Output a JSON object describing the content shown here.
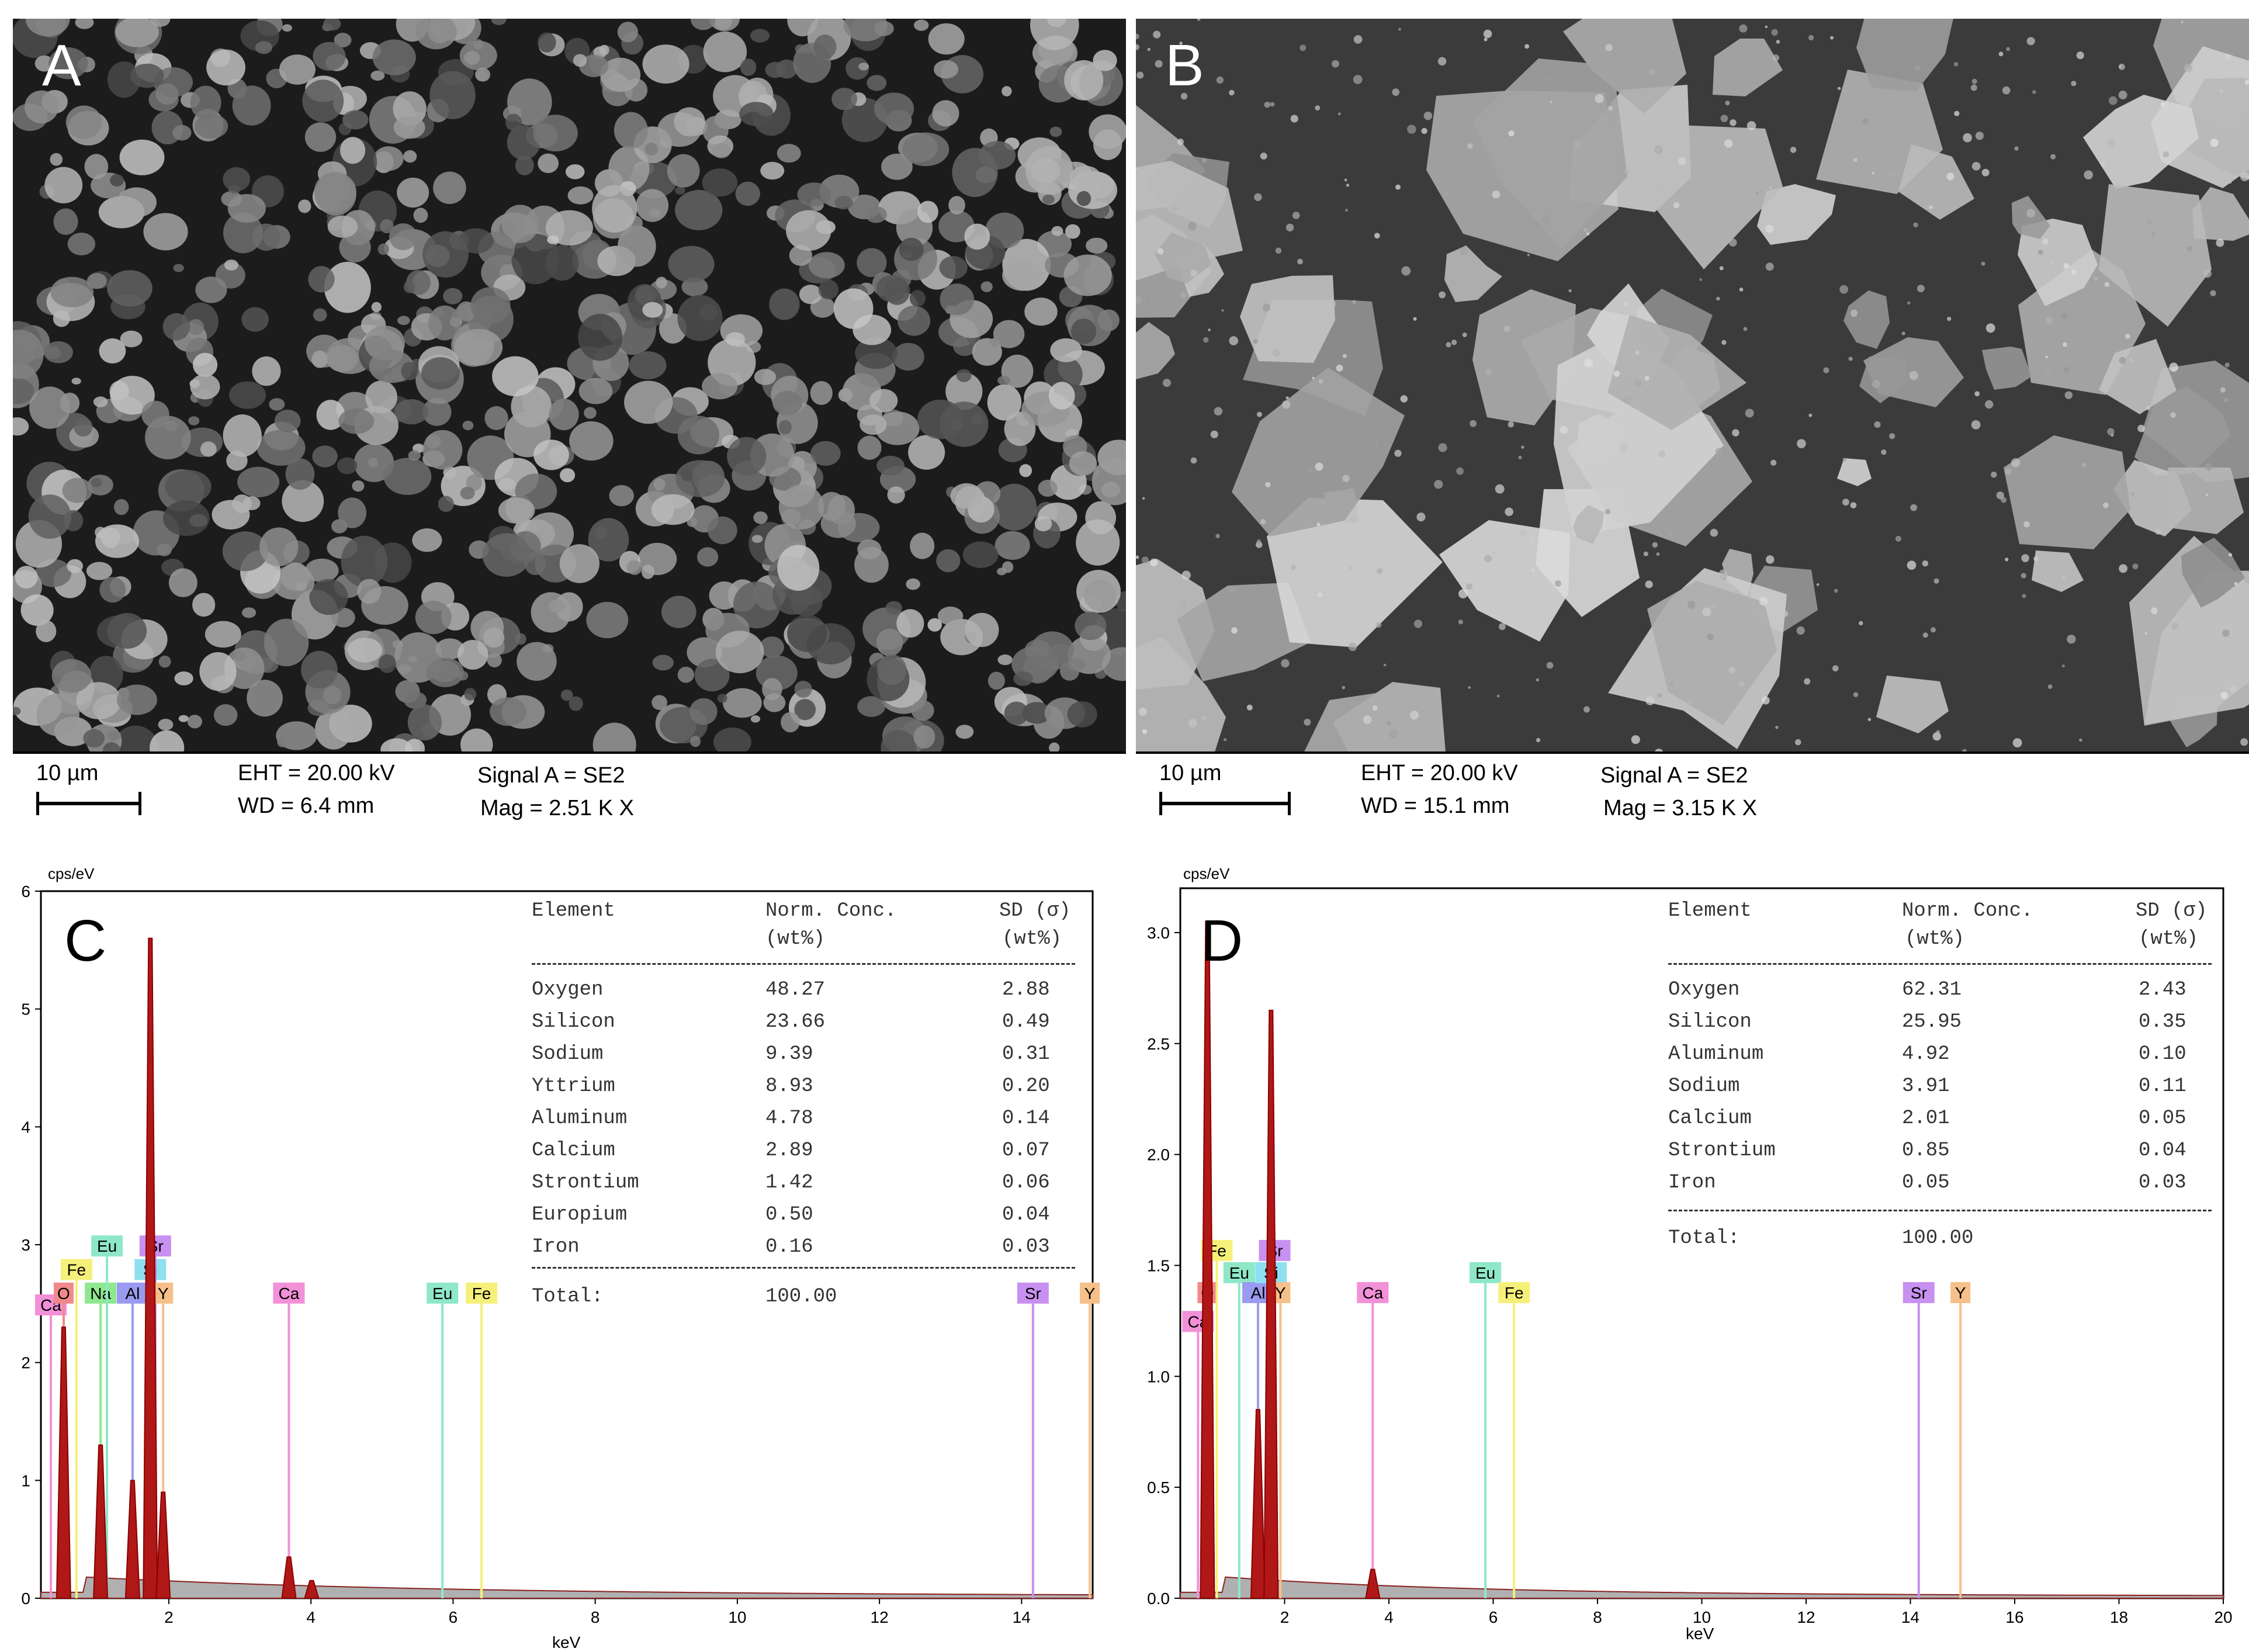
{
  "panels": {
    "a": {
      "letter": "A",
      "scale": "10 µm",
      "eht": "EHT = 20.00 kV",
      "wd": "WD =  6.4 mm",
      "signal": "Signal A = SE2",
      "mag": "Mag =    2.51 K X"
    },
    "b": {
      "letter": "B",
      "scale": "10 µm",
      "eht": "EHT = 20.00 kV",
      "wd": "WD = 15.1 mm",
      "signal": "Signal A = SE2",
      "mag": "Mag =    3.15 K X"
    }
  },
  "chart_data": [
    {
      "panel": "C",
      "type": "line",
      "ylabel_top": "cps/eV",
      "xlabel": "keV",
      "xlim": [
        0.2,
        15
      ],
      "ylim": [
        0,
        6
      ],
      "xticks": [
        "2",
        "4",
        "6",
        "8",
        "10",
        "12",
        "14"
      ],
      "yticks": [
        "0",
        "1",
        "2",
        "3",
        "4",
        "5",
        "6"
      ],
      "peaks": [
        {
          "element": "O",
          "kev": 0.52,
          "height": 2.3
        },
        {
          "element": "Na",
          "kev": 1.04,
          "height": 1.3
        },
        {
          "element": "Al",
          "kev": 1.49,
          "height": 1.0
        },
        {
          "element": "Si",
          "kev": 1.74,
          "height": 5.6
        },
        {
          "element": "Y",
          "kev": 1.92,
          "height": 0.9
        },
        {
          "element": "Ca",
          "kev": 3.69,
          "height": 0.35
        },
        {
          "element": "Ca",
          "kev": 4.01,
          "height": 0.15
        }
      ],
      "markers": [
        {
          "label": "Ca",
          "kev": 0.34,
          "height": 2.4,
          "color": "#f290d8"
        },
        {
          "label": "O",
          "kev": 0.52,
          "height": 2.5,
          "color": "#f08a8a"
        },
        {
          "label": "Fe",
          "kev": 0.7,
          "height": 2.7,
          "color": "#f5f07a"
        },
        {
          "label": "Na",
          "kev": 1.04,
          "height": 2.5,
          "color": "#8fe88f"
        },
        {
          "label": "Eu",
          "kev": 1.13,
          "height": 2.9,
          "color": "#8ee8c8"
        },
        {
          "label": "Al",
          "kev": 1.49,
          "height": 2.5,
          "color": "#9a9af0"
        },
        {
          "label": "Si",
          "kev": 1.74,
          "height": 2.7,
          "color": "#8ee0f0"
        },
        {
          "label": "Sr",
          "kev": 1.81,
          "height": 2.9,
          "color": "#c890f0"
        },
        {
          "label": "Y",
          "kev": 1.92,
          "height": 2.5,
          "color": "#f5c08a"
        },
        {
          "label": "Ca",
          "kev": 3.69,
          "height": 2.5,
          "color": "#f290d8"
        },
        {
          "label": "Eu",
          "kev": 5.85,
          "height": 2.5,
          "color": "#8ee8c8"
        },
        {
          "label": "Fe",
          "kev": 6.4,
          "height": 2.5,
          "color": "#f5f07a"
        },
        {
          "label": "Sr",
          "kev": 14.16,
          "height": 2.5,
          "color": "#c890f0"
        },
        {
          "label": "Y",
          "kev": 14.96,
          "height": 2.5,
          "color": "#f5c08a"
        }
      ],
      "table": {
        "headers": [
          "Element",
          "Norm. Conc.",
          "SD (σ)"
        ],
        "units": [
          "",
          "(wt%)",
          "(wt%)"
        ],
        "rows": [
          [
            "Oxygen",
            "48.27",
            "2.88"
          ],
          [
            "Silicon",
            "23.66",
            "0.49"
          ],
          [
            "Sodium",
            "9.39",
            "0.31"
          ],
          [
            "Yttrium",
            "8.93",
            "0.20"
          ],
          [
            "Aluminum",
            "4.78",
            "0.14"
          ],
          [
            "Calcium",
            "2.89",
            "0.07"
          ],
          [
            "Strontium",
            "1.42",
            "0.06"
          ],
          [
            "Europium",
            "0.50",
            "0.04"
          ],
          [
            "Iron",
            "0.16",
            "0.03"
          ]
        ],
        "total_label": "Total:",
        "total_value": "100.00"
      }
    },
    {
      "panel": "D",
      "type": "line",
      "ylabel_top": "cps/eV",
      "xlabel": "keV",
      "xlim": [
        0,
        20
      ],
      "ylim": [
        0,
        3.2
      ],
      "xticks": [
        "2",
        "4",
        "6",
        "8",
        "10",
        "12",
        "14",
        "16",
        "18",
        "20"
      ],
      "yticks": [
        "0.0",
        "0.5",
        "1.0",
        "1.5",
        "2.0",
        "2.5",
        "3.0"
      ],
      "peaks": [
        {
          "element": "O",
          "kev": 0.52,
          "height": 3.05
        },
        {
          "element": "Al",
          "kev": 1.49,
          "height": 0.85
        },
        {
          "element": "Si",
          "kev": 1.74,
          "height": 2.65
        },
        {
          "element": "Ca",
          "kev": 3.69,
          "height": 0.13
        }
      ],
      "markers": [
        {
          "label": "Ca",
          "kev": 0.34,
          "height": 1.2,
          "color": "#f290d8"
        },
        {
          "label": "O",
          "kev": 0.52,
          "height": 1.33,
          "color": "#f08a8a"
        },
        {
          "label": "Fe",
          "kev": 0.7,
          "height": 1.52,
          "color": "#f5f07a"
        },
        {
          "label": "Eu",
          "kev": 1.13,
          "height": 1.42,
          "color": "#8ee8c8"
        },
        {
          "label": "Al",
          "kev": 1.49,
          "height": 1.33,
          "color": "#9a9af0"
        },
        {
          "label": "Si",
          "kev": 1.74,
          "height": 1.42,
          "color": "#8ee0f0"
        },
        {
          "label": "Sr",
          "kev": 1.81,
          "height": 1.52,
          "color": "#c890f0"
        },
        {
          "label": "Y",
          "kev": 1.92,
          "height": 1.33,
          "color": "#f5c08a"
        },
        {
          "label": "Ca",
          "kev": 3.69,
          "height": 1.33,
          "color": "#f290d8"
        },
        {
          "label": "Eu",
          "kev": 5.85,
          "height": 1.42,
          "color": "#8ee8c8"
        },
        {
          "label": "Fe",
          "kev": 6.4,
          "height": 1.33,
          "color": "#f5f07a"
        },
        {
          "label": "Sr",
          "kev": 14.16,
          "height": 1.33,
          "color": "#c890f0"
        },
        {
          "label": "Y",
          "kev": 14.96,
          "height": 1.33,
          "color": "#f5c08a"
        }
      ],
      "table": {
        "headers": [
          "Element",
          "Norm. Conc.",
          "SD (σ)"
        ],
        "units": [
          "",
          "(wt%)",
          "(wt%)"
        ],
        "rows": [
          [
            "Oxygen",
            "62.31",
            "2.43"
          ],
          [
            "Silicon",
            "25.95",
            "0.35"
          ],
          [
            "Aluminum",
            "4.92",
            "0.10"
          ],
          [
            "Sodium",
            "3.91",
            "0.11"
          ],
          [
            "Calcium",
            "2.01",
            "0.05"
          ],
          [
            "Strontium",
            "0.85",
            "0.04"
          ],
          [
            "Iron",
            "0.05",
            "0.03"
          ]
        ],
        "total_label": "Total:",
        "total_value": "100.00"
      }
    }
  ]
}
